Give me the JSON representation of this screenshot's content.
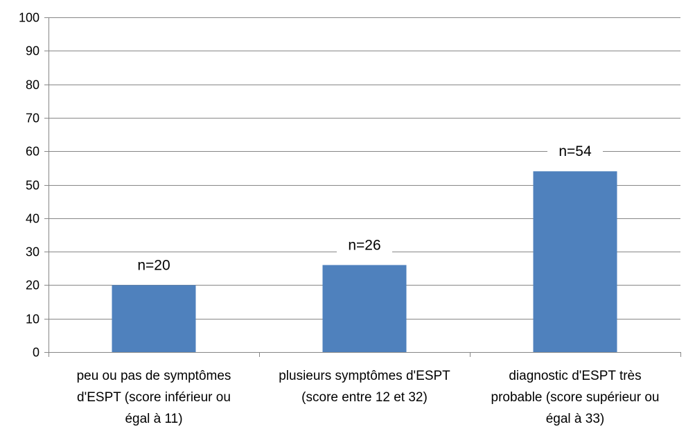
{
  "chart_data": {
    "type": "bar",
    "categories": [
      [
        "peu ou pas de symptômes",
        "d'ESPT (score inférieur ou",
        "égal à 11)"
      ],
      [
        "plusieurs symptômes d'ESPT",
        "(score entre 12 et 32)"
      ],
      [
        "diagnostic d'ESPT très",
        "probable (score supérieur ou",
        "égal à 33)"
      ]
    ],
    "values": [
      20,
      26,
      54
    ],
    "data_labels": [
      "n=20",
      "n=26",
      "n=54"
    ],
    "ylim": [
      0,
      100
    ],
    "yticks": [
      0,
      10,
      20,
      30,
      40,
      50,
      60,
      70,
      80,
      90,
      100
    ],
    "ytick_labels": [
      "0",
      "10",
      "20",
      "30",
      "40",
      "50",
      "60",
      "70",
      "80",
      "90",
      "100"
    ],
    "grid": true,
    "legend": "none",
    "colors": {
      "bar": "#4f81bd",
      "grid": "#868686",
      "axis": "#868686",
      "text": "#000000"
    }
  }
}
